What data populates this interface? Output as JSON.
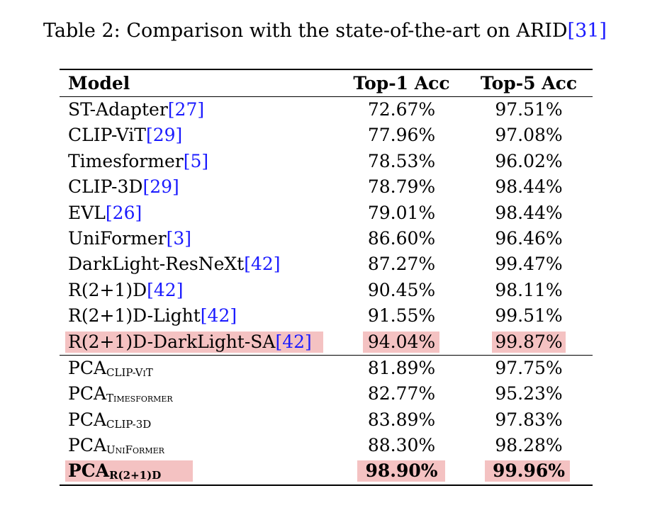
{
  "caption": {
    "prefix": "Table 2: Comparison with the state-of-the-art on ARID",
    "cite": "[31]"
  },
  "columns": [
    "Model",
    "Top-1 Acc",
    "Top-5 Acc"
  ],
  "rows_sota": [
    {
      "model": "ST-Adapter",
      "cite": "[27]",
      "top1": "72.67%",
      "top5": "97.51%"
    },
    {
      "model": "CLIP-ViT",
      "cite": "[29]",
      "top1": "77.96%",
      "top5": "97.08%"
    },
    {
      "model": "Timesformer",
      "cite": "[5]",
      "top1": "78.53%",
      "top5": "96.02%"
    },
    {
      "model": "CLIP-3D",
      "cite": "[29]",
      "top1": "78.79%",
      "top5": "98.44%"
    },
    {
      "model": "EVL",
      "cite": "[26]",
      "top1": "79.01%",
      "top5": "98.44%"
    },
    {
      "model": "UniFormer",
      "cite": "[3]",
      "top1": "86.60%",
      "top5": "96.46%"
    },
    {
      "model": "DarkLight-ResNeXt",
      "cite": "[42]",
      "top1": "87.27%",
      "top5": "99.47%"
    },
    {
      "model": "R(2+1)D",
      "cite": "[42]",
      "top1": "90.45%",
      "top5": "98.11%"
    },
    {
      "model": "R(2+1)D-Light",
      "cite": "[42]",
      "top1": "91.55%",
      "top5": "99.51%"
    },
    {
      "model": "R(2+1)D-DarkLight-SA",
      "cite": "[42]",
      "top1": "94.04%",
      "top5": "99.87%"
    }
  ],
  "rows_pca": [
    {
      "model": "PCA",
      "sub": "CLIP-ViT",
      "top1": "81.89%",
      "top5": "97.75%"
    },
    {
      "model": "PCA",
      "sub": "Timesformer",
      "top1": "82.77%",
      "top5": "95.23%"
    },
    {
      "model": "PCA",
      "sub": "CLIP-3D",
      "top1": "83.89%",
      "top5": "97.83%"
    },
    {
      "model": "PCA",
      "sub": "UniFormer",
      "top1": "88.30%",
      "top5": "98.28%"
    },
    {
      "model": "PCA",
      "sub": "R(2+1)D",
      "top1": "98.90%",
      "top5": "99.96%"
    }
  ],
  "highlight_color": "#f4c2c2",
  "cite_color": "#1a1aff"
}
